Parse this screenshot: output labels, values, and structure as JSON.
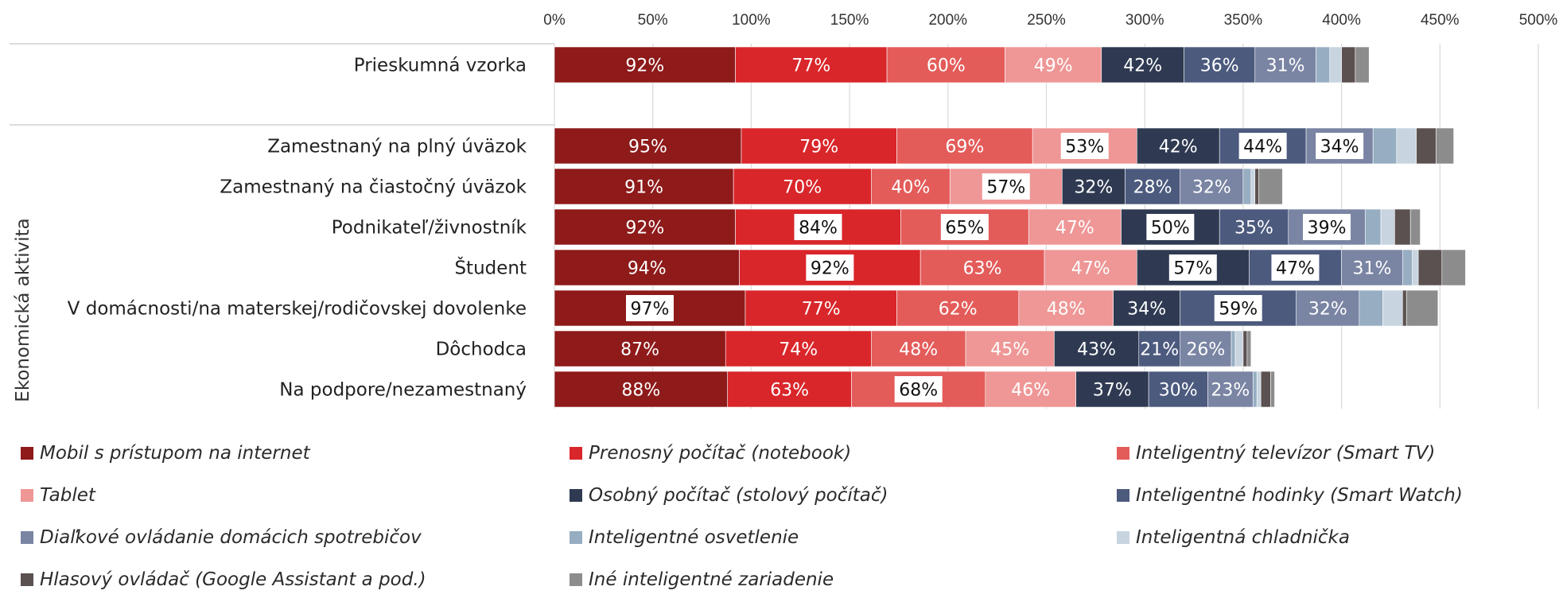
{
  "chart_data": {
    "type": "bar",
    "orientation": "horizontal",
    "stacked": true,
    "xlim": [
      0,
      500
    ],
    "xticks": [
      "0%",
      "50%",
      "100%",
      "150%",
      "200%",
      "250%",
      "300%",
      "350%",
      "400%",
      "450%",
      "500%"
    ],
    "group_label": "Ekonomická aktivita",
    "gridlines": true,
    "legend_position": "bottom",
    "series": [
      {
        "name": "Mobil s prístupom na internet",
        "color": "#8E1A1A"
      },
      {
        "name": "Prenosný počítač (notebook)",
        "color": "#D9262A"
      },
      {
        "name": "Inteligentný televízor (Smart TV)",
        "color": "#E35C5A"
      },
      {
        "name": "Tablet",
        "color": "#EE9796"
      },
      {
        "name": "Osobný počítač (stolový počítač)",
        "color": "#2F3A52"
      },
      {
        "name": "Inteligentné hodinky (Smart Watch)",
        "color": "#4C5A7E"
      },
      {
        "name": "Diaľkové ovládanie domácich spotrebičov",
        "color": "#7A84A3"
      },
      {
        "name": "Inteligentné osvetlenie",
        "color": "#97AEC2"
      },
      {
        "name": "Inteligentná chladnička",
        "color": "#C8D4DF"
      },
      {
        "name": "Hlasový ovládač (Google Assistant a pod.)",
        "color": "#5A5150"
      },
      {
        "name": "Iné inteligentné zariadenie",
        "color": "#8C8C8C"
      }
    ],
    "rows": [
      {
        "category": "Prieskumná vzorka",
        "values": [
          92,
          77,
          60,
          49,
          42,
          36,
          31,
          7,
          6,
          7,
          7
        ],
        "labels": [
          "92%",
          "77%",
          "60%",
          "49%",
          "42%",
          "36%",
          "31%",
          "",
          "",
          "",
          ""
        ],
        "boxed": [
          false,
          false,
          false,
          false,
          false,
          false,
          false,
          false,
          false,
          false,
          false
        ]
      },
      {
        "category": "Zamestnaný na plný úväzok",
        "values": [
          95,
          79,
          69,
          53,
          42,
          44,
          34,
          12,
          10,
          10,
          9
        ],
        "labels": [
          "95%",
          "79%",
          "69%",
          "53%",
          "42%",
          "44%",
          "34%",
          "",
          "",
          "",
          ""
        ],
        "boxed": [
          false,
          false,
          false,
          true,
          false,
          true,
          true,
          false,
          false,
          false,
          false
        ]
      },
      {
        "category": "Zamestnaný na čiastočný úväzok",
        "values": [
          91,
          70,
          40,
          57,
          32,
          28,
          32,
          4,
          2,
          2,
          12
        ],
        "labels": [
          "91%",
          "70%",
          "40%",
          "57%",
          "32%",
          "28%",
          "32%",
          "",
          "",
          "",
          ""
        ],
        "boxed": [
          false,
          false,
          false,
          true,
          false,
          false,
          false,
          false,
          false,
          false,
          false
        ]
      },
      {
        "category": "Podnikateľ/živnostník",
        "values": [
          92,
          84,
          65,
          47,
          50,
          35,
          39,
          8,
          7,
          8,
          5
        ],
        "labels": [
          "92%",
          "84%",
          "65%",
          "47%",
          "50%",
          "35%",
          "39%",
          "",
          "",
          "",
          ""
        ],
        "boxed": [
          false,
          true,
          true,
          false,
          true,
          false,
          true,
          false,
          false,
          false,
          false
        ]
      },
      {
        "category": "Študent",
        "values": [
          94,
          92,
          63,
          47,
          57,
          47,
          31,
          5,
          3,
          12,
          12
        ],
        "labels": [
          "94%",
          "92%",
          "63%",
          "47%",
          "57%",
          "47%",
          "31%",
          "",
          "",
          "",
          ""
        ],
        "boxed": [
          false,
          true,
          false,
          false,
          true,
          true,
          false,
          false,
          false,
          false,
          false
        ]
      },
      {
        "category": "V domácnosti/na materskej/rodičovskej dovolenke",
        "values": [
          97,
          77,
          62,
          48,
          34,
          59,
          32,
          12,
          10,
          2,
          16
        ],
        "labels": [
          "97%",
          "77%",
          "62%",
          "48%",
          "34%",
          "59%",
          "32%",
          "",
          "",
          "",
          ""
        ],
        "boxed": [
          true,
          false,
          false,
          false,
          false,
          true,
          false,
          false,
          false,
          false,
          false
        ]
      },
      {
        "category": "Dôchodca",
        "values": [
          87,
          74,
          48,
          45,
          43,
          21,
          26,
          2,
          4,
          2,
          2
        ],
        "labels": [
          "87%",
          "74%",
          "48%",
          "45%",
          "43%",
          "21%",
          "26%",
          "",
          "",
          "",
          ""
        ],
        "boxed": [
          false,
          false,
          false,
          false,
          false,
          false,
          false,
          false,
          false,
          false,
          false
        ]
      },
      {
        "category": "Na podpore/nezamestnaný",
        "values": [
          88,
          63,
          68,
          46,
          37,
          30,
          23,
          2,
          2,
          5,
          2
        ],
        "labels": [
          "88%",
          "63%",
          "68%",
          "46%",
          "37%",
          "30%",
          "23%",
          "",
          "",
          "",
          ""
        ],
        "boxed": [
          false,
          false,
          true,
          false,
          false,
          false,
          false,
          false,
          false,
          false,
          false
        ]
      }
    ]
  }
}
